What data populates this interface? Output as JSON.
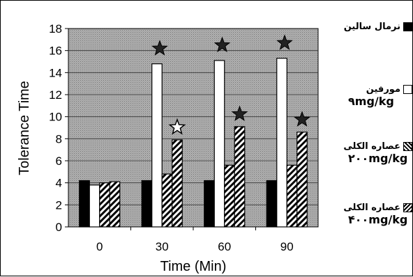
{
  "colors": {
    "plot_background": "#a9a9a9",
    "black_bar": "#000000",
    "white_bar": "#ffffff",
    "hatch": "#000000",
    "star_fill": "#222222"
  },
  "chart_data": {
    "type": "bar",
    "xlabel": "Time (Min)",
    "ylabel": "Tolerance Time",
    "categories": [
      "0",
      "30",
      "60",
      "90"
    ],
    "ylim": [
      0,
      18
    ],
    "yticks": [
      "0",
      "2",
      "4",
      "6",
      "8",
      "10",
      "12",
      "14",
      "16",
      "18"
    ],
    "grid": true,
    "legend_position": "right",
    "series": [
      {
        "name": "نرمال سالين",
        "dose": "",
        "pattern": "black",
        "values": [
          4.2,
          4.2,
          4.2,
          4.2
        ],
        "stars": [
          null,
          null,
          null,
          null
        ]
      },
      {
        "name": "مورفين",
        "dose": "۹mg/kg",
        "pattern": "white",
        "values": [
          3.8,
          14.8,
          15.1,
          15.3
        ],
        "stars": [
          null,
          "dark",
          "dark",
          "dark"
        ]
      },
      {
        "name": "عصاره الكلى",
        "dose": "۲۰۰mg/kg",
        "pattern": "hatch",
        "values": [
          4.0,
          4.8,
          5.6,
          5.6
        ],
        "stars": [
          null,
          null,
          null,
          null
        ]
      },
      {
        "name": "عصاره الكلى",
        "dose": "۴۰۰mg/kg",
        "pattern": "hatch",
        "values": [
          4.1,
          7.9,
          9.1,
          8.6
        ],
        "stars": [
          null,
          "outline",
          "dark",
          "dark"
        ]
      }
    ]
  }
}
